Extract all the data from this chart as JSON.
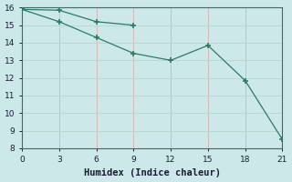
{
  "title": "",
  "xlabel": "Humidex (Indice chaleur)",
  "ylabel": "",
  "bg_color": "#cde8e8",
  "line_color": "#2a7a6a",
  "grid_color": "#b8d8d0",
  "series1_x": [
    0,
    3,
    6,
    9
  ],
  "series1_y": [
    15.9,
    15.85,
    15.2,
    15.0
  ],
  "series2_x": [
    0,
    3,
    6,
    9,
    12,
    15,
    18,
    21
  ],
  "series2_y": [
    15.9,
    15.2,
    14.3,
    13.4,
    13.0,
    13.85,
    11.85,
    8.5
  ],
  "xlim": [
    0,
    21
  ],
  "ylim": [
    8,
    16
  ],
  "xticks": [
    0,
    3,
    6,
    9,
    12,
    15,
    18,
    21
  ],
  "yticks": [
    8,
    9,
    10,
    11,
    12,
    13,
    14,
    15,
    16
  ],
  "tick_fontsize": 6.5,
  "xlabel_fontsize": 7.5
}
